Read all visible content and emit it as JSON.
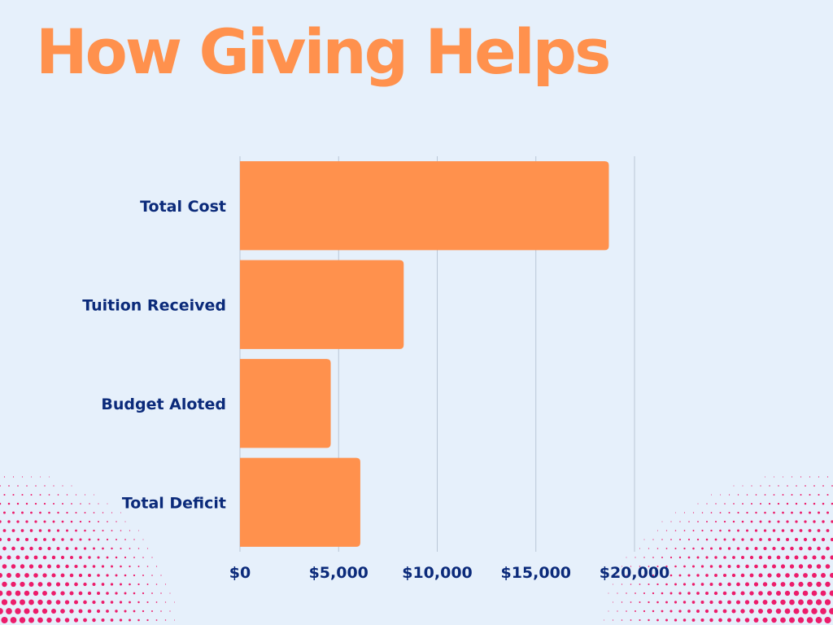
{
  "page": {
    "title": "How Giving Helps"
  },
  "colors": {
    "background": "#e6f0fb",
    "title": "#ff914d",
    "bar": "#ff914d",
    "label": "#0b2a7a",
    "grid": "#b9c6d6",
    "dots": "#ec1c6b"
  },
  "chart_data": {
    "type": "bar",
    "orientation": "horizontal",
    "categories": [
      "Total Cost",
      "Tuition Received",
      "Budget Aloted",
      "Total Deficit"
    ],
    "values": [
      18700,
      8300,
      4600,
      6100
    ],
    "xlim": [
      0,
      20000
    ],
    "x_ticks": [
      0,
      5000,
      10000,
      15000,
      20000
    ],
    "x_tick_labels": [
      "$0",
      "$5,000",
      "$10,000",
      "$15,000",
      "$20,000"
    ],
    "grid": true,
    "legend": "none",
    "title": "",
    "xlabel": "",
    "ylabel": ""
  }
}
